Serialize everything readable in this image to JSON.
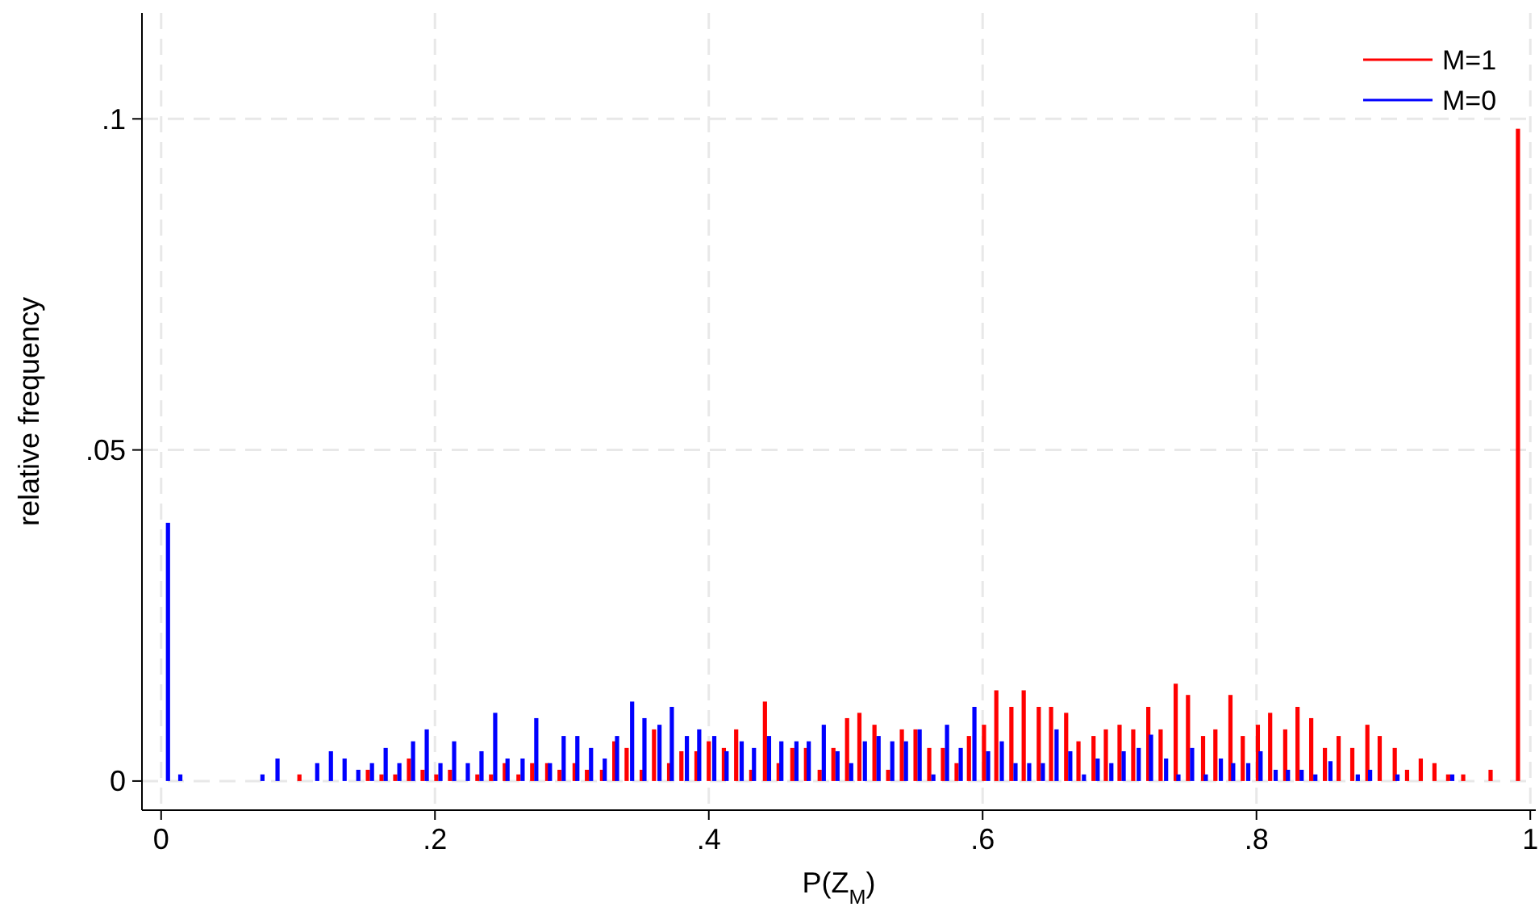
{
  "chart_data": {
    "type": "bar",
    "xlabel": "P(Z$_{M}$)",
    "ylabel": "relative frequency",
    "xlim": [
      -0.014,
      1.004
    ],
    "ylim": [
      -0.0044,
      0.116
    ],
    "xticks": [
      0,
      {
        "value": 0.2,
        "label": ".2"
      },
      {
        "value": 0.4,
        "label": ".4"
      },
      {
        "value": 0.6,
        "label": ".6"
      },
      {
        "value": 0.8,
        "label": ".8"
      },
      1
    ],
    "yticks": [
      0,
      {
        "value": 0.05,
        "label": ".05"
      },
      {
        "value": 0.1,
        "label": ".1"
      }
    ],
    "grid": true,
    "legend": "top right",
    "series": [
      {
        "name": "M=1",
        "color": "#ff0000",
        "x": [
          0.101,
          0.151,
          0.161,
          0.171,
          0.181,
          0.191,
          0.201,
          0.211,
          0.231,
          0.241,
          0.251,
          0.261,
          0.271,
          0.282,
          0.291,
          0.302,
          0.311,
          0.322,
          0.331,
          0.34,
          0.351,
          0.36,
          0.371,
          0.38,
          0.391,
          0.4,
          0.411,
          0.42,
          0.431,
          0.441,
          0.451,
          0.461,
          0.471,
          0.481,
          0.491,
          0.501,
          0.51,
          0.521,
          0.531,
          0.541,
          0.551,
          0.561,
          0.571,
          0.581,
          0.59,
          0.601,
          0.61,
          0.621,
          0.63,
          0.641,
          0.65,
          0.661,
          0.67,
          0.681,
          0.69,
          0.7,
          0.71,
          0.721,
          0.73,
          0.741,
          0.75,
          0.761,
          0.77,
          0.781,
          0.79,
          0.801,
          0.81,
          0.821,
          0.83,
          0.84,
          0.85,
          0.86,
          0.87,
          0.881,
          0.89,
          0.901,
          0.91,
          0.92,
          0.93,
          0.94,
          0.951,
          0.971,
          0.991
        ],
        "values": [
          0.001,
          0.0017,
          0.001,
          0.001,
          0.0034,
          0.0017,
          0.001,
          0.0017,
          0.001,
          0.001,
          0.0027,
          0.001,
          0.0027,
          0.0027,
          0.0017,
          0.0027,
          0.0017,
          0.0017,
          0.006,
          0.005,
          0.0017,
          0.0078,
          0.0027,
          0.0045,
          0.0045,
          0.006,
          0.005,
          0.0078,
          0.0017,
          0.012,
          0.0027,
          0.005,
          0.005,
          0.0017,
          0.005,
          0.0095,
          0.0103,
          0.0085,
          0.0017,
          0.0078,
          0.0078,
          0.005,
          0.005,
          0.0027,
          0.0068,
          0.0085,
          0.0137,
          0.0112,
          0.0137,
          0.0112,
          0.0112,
          0.0103,
          0.006,
          0.0068,
          0.0078,
          0.0085,
          0.0078,
          0.0112,
          0.0078,
          0.0147,
          0.013,
          0.0068,
          0.0078,
          0.013,
          0.0068,
          0.0085,
          0.0103,
          0.0078,
          0.0112,
          0.0095,
          0.005,
          0.0068,
          0.005,
          0.0085,
          0.0068,
          0.005,
          0.0017,
          0.0034,
          0.0027,
          0.001,
          0.001,
          0.0017,
          0.0985
        ]
      },
      {
        "name": "M=0",
        "color": "#0000ff",
        "x": [
          0.005,
          0.014,
          0.074,
          0.085,
          0.114,
          0.124,
          0.134,
          0.144,
          0.154,
          0.164,
          0.174,
          0.184,
          0.194,
          0.204,
          0.214,
          0.224,
          0.234,
          0.244,
          0.253,
          0.264,
          0.274,
          0.284,
          0.294,
          0.304,
          0.314,
          0.324,
          0.333,
          0.344,
          0.353,
          0.364,
          0.373,
          0.384,
          0.393,
          0.404,
          0.413,
          0.424,
          0.433,
          0.444,
          0.453,
          0.464,
          0.473,
          0.484,
          0.494,
          0.504,
          0.514,
          0.524,
          0.534,
          0.544,
          0.554,
          0.564,
          0.574,
          0.584,
          0.594,
          0.604,
          0.614,
          0.624,
          0.634,
          0.644,
          0.654,
          0.664,
          0.674,
          0.684,
          0.694,
          0.703,
          0.714,
          0.723,
          0.734,
          0.743,
          0.753,
          0.763,
          0.774,
          0.783,
          0.794,
          0.803,
          0.814,
          0.823,
          0.833,
          0.843,
          0.854,
          0.874,
          0.883,
          0.903,
          0.943
        ],
        "values": [
          0.039,
          0.001,
          0.001,
          0.0034,
          0.0027,
          0.0045,
          0.0034,
          0.0017,
          0.0027,
          0.005,
          0.0027,
          0.006,
          0.0078,
          0.0027,
          0.006,
          0.0027,
          0.0045,
          0.0103,
          0.0034,
          0.0034,
          0.0095,
          0.0027,
          0.0068,
          0.0068,
          0.005,
          0.0034,
          0.0068,
          0.012,
          0.0095,
          0.0085,
          0.0112,
          0.0068,
          0.0078,
          0.0068,
          0.0045,
          0.006,
          0.005,
          0.0068,
          0.006,
          0.006,
          0.006,
          0.0085,
          0.0045,
          0.0027,
          0.006,
          0.0068,
          0.006,
          0.006,
          0.0078,
          0.001,
          0.0085,
          0.005,
          0.0112,
          0.0045,
          0.006,
          0.0027,
          0.0027,
          0.0027,
          0.0078,
          0.0045,
          0.001,
          0.0034,
          0.0027,
          0.0045,
          0.005,
          0.007,
          0.0034,
          0.001,
          0.005,
          0.001,
          0.0034,
          0.0027,
          0.0027,
          0.0045,
          0.0017,
          0.0017,
          0.0017,
          0.001,
          0.003,
          0.001,
          0.0017,
          0.001,
          0.001
        ]
      }
    ]
  }
}
